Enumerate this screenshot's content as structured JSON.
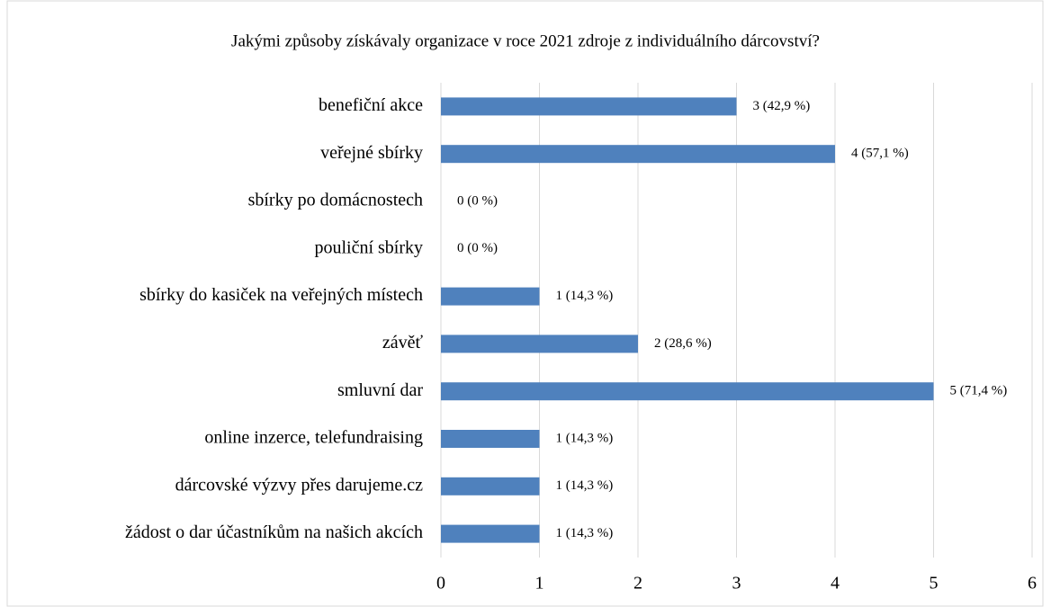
{
  "chart_data": {
    "type": "bar",
    "orientation": "horizontal",
    "title": "Jakými způsoby získávaly organizace v roce 2021 zdroje z individuálního dárcovství?",
    "categories": [
      "benefiční akce",
      "veřejné sbírky",
      "sbírky po domácnostech",
      "pouliční sbírky",
      "sbírky do kasiček na veřejných místech",
      "závěť",
      "smluvní dar",
      "online inzerce, telefundraising",
      "dárcovské výzvy přes darujeme.cz",
      "žádost o dar účastníkům na našich akcích"
    ],
    "values": [
      3,
      4,
      0,
      0,
      1,
      2,
      5,
      1,
      1,
      1
    ],
    "value_labels": [
      "3 (42,9 %)",
      "4 (57,1 %)",
      "0 (0 %)",
      "0 (0 %)",
      "1 (14,3 %)",
      "2 (28,6 %)",
      "5 (71,4 %)",
      "1 (14,3 %)",
      "1 (14,3 %)",
      "1 (14,3 %)"
    ],
    "color": "#4f81bd",
    "xlim": [
      0,
      6
    ],
    "xticks": [
      0,
      1,
      2,
      3,
      4,
      5,
      6
    ],
    "grid": true
  }
}
